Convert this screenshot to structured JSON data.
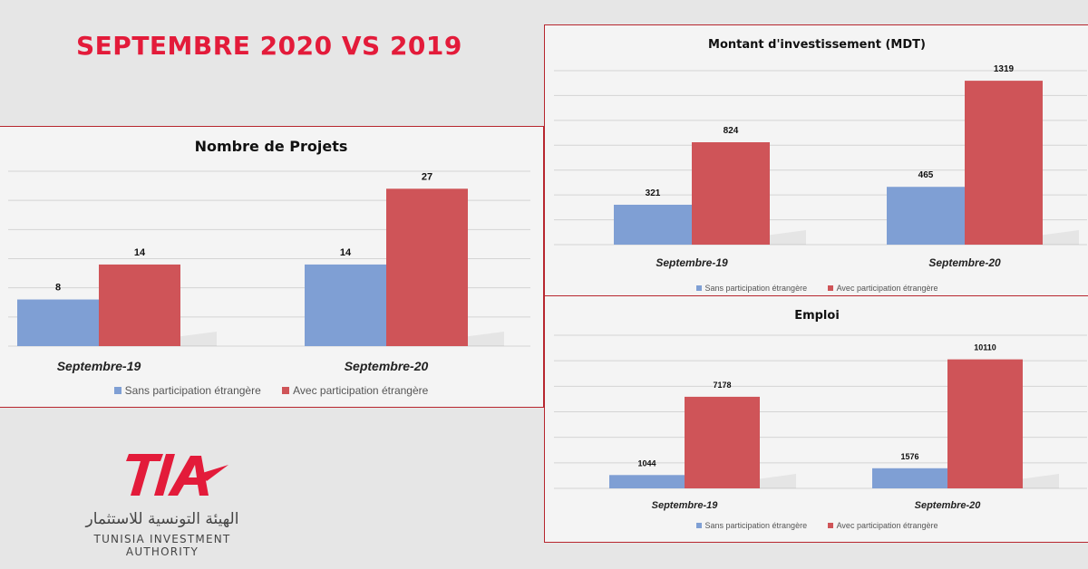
{
  "headline": "SEPTEMBRE 2020 VS 2019",
  "colors": {
    "accent": "#e31b3a",
    "series_blue": "#7f9fd4",
    "series_red": "#cf5458",
    "border": "#b7262e"
  },
  "logo": {
    "mark_text": "TIA",
    "arabic": "الهيئة التونسية للاستثمار",
    "english": "TUNISIA INVESTMENT AUTHORITY"
  },
  "chart_data": [
    {
      "id": "projets",
      "type": "bar",
      "title": "Nombre de Projets",
      "categories": [
        "Septembre-19",
        "Septembre-20"
      ],
      "series": [
        {
          "name": "Sans participation étrangère",
          "values": [
            8,
            14
          ]
        },
        {
          "name": "Avec participation étrangère",
          "values": [
            14,
            27
          ]
        }
      ],
      "ylim": [
        0,
        30
      ],
      "grid": true,
      "legend": "bottom"
    },
    {
      "id": "invest",
      "type": "bar",
      "title": "Montant d'investissement (MDT)",
      "categories": [
        "Septembre-19",
        "Septembre-20"
      ],
      "series": [
        {
          "name": "Sans participation étrangère",
          "values": [
            321,
            465
          ]
        },
        {
          "name": "Avec participation étrangère",
          "values": [
            824,
            1319
          ]
        }
      ],
      "ylim": [
        0,
        1400
      ],
      "grid": true,
      "legend": "bottom"
    },
    {
      "id": "emploi",
      "type": "bar",
      "title": "Emploi",
      "categories": [
        "Septembre-19",
        "Septembre-20"
      ],
      "series": [
        {
          "name": "Sans participation étrangère",
          "values": [
            1044,
            1576
          ]
        },
        {
          "name": "Avec participation étrangère",
          "values": [
            7178,
            10110
          ]
        }
      ],
      "ylim": [
        0,
        12000
      ],
      "grid": true,
      "legend": "bottom"
    }
  ]
}
